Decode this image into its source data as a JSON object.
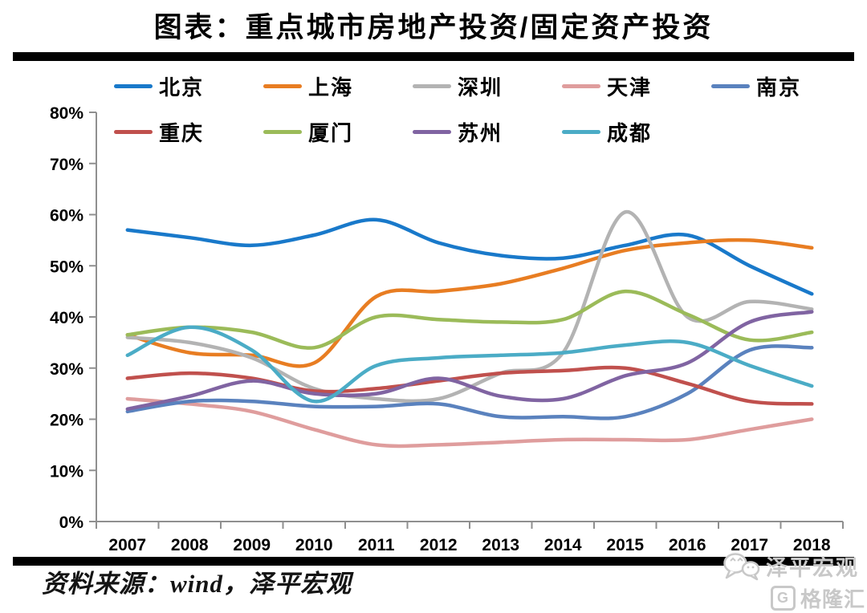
{
  "title": "图表：重点城市房地产投资/固定资产投资",
  "footer": {
    "source": "资料来源：wind，泽平宏观"
  },
  "watermark": {
    "wechat_account": "泽平宏观",
    "brand": "格隆汇",
    "brand_letter": "G"
  },
  "icons": {
    "watermark_icon": "wechat-bubbles-icon",
    "brand_icon": "gelonghui-g-icon"
  },
  "chart_data": {
    "type": "line",
    "title": "重点城市房地产投资/固定资产投资",
    "categories": [
      "2007",
      "2008",
      "2009",
      "2010",
      "2011",
      "2012",
      "2013",
      "2014",
      "2015",
      "2016",
      "2017",
      "2018"
    ],
    "xlabel": "",
    "ylabel": "",
    "unit": "percent",
    "ylim": [
      0,
      80
    ],
    "y_ticks": [
      "0%",
      "10%",
      "20%",
      "30%",
      "40%",
      "50%",
      "60%",
      "70%",
      "80%"
    ],
    "grid": false,
    "legend_position": "top",
    "axis_color": "#8f8f8f",
    "line_smoothing": true,
    "series": [
      {
        "key": "beijing",
        "name": "北京",
        "color": "#1979ca",
        "values": [
          57,
          55.5,
          54,
          56,
          59,
          54.5,
          52,
          51.5,
          54,
          56,
          50,
          44.5
        ]
      },
      {
        "key": "shanghai",
        "name": "上海",
        "color": "#e87d22",
        "values": [
          36.5,
          33,
          32.5,
          31,
          44,
          45,
          46.5,
          49.5,
          53,
          54.5,
          55,
          53.5
        ]
      },
      {
        "key": "shenzhen",
        "name": "深圳",
        "color": "#b3b3b3",
        "values": [
          36,
          35,
          32,
          26,
          24,
          24,
          29,
          33,
          60.5,
          40,
          43,
          41.5
        ]
      },
      {
        "key": "tianjin",
        "name": "天津",
        "color": "#df9d9d",
        "values": [
          24,
          23,
          21.5,
          18,
          15,
          15,
          15.5,
          16,
          16,
          16,
          18,
          20
        ]
      },
      {
        "key": "nanjing",
        "name": "南京",
        "color": "#5a82be",
        "values": [
          21.5,
          23.5,
          23.5,
          22.5,
          22.5,
          23,
          20.5,
          20.5,
          20.5,
          25,
          33.5,
          34
        ]
      },
      {
        "key": "chongqing",
        "name": "重庆",
        "color": "#c0504d",
        "values": [
          28,
          29,
          28,
          25.5,
          26,
          27.5,
          29,
          29.5,
          30,
          27,
          23.5,
          23
        ]
      },
      {
        "key": "xiamen",
        "name": "厦门",
        "color": "#9bbb59",
        "values": [
          36.5,
          38,
          37,
          34,
          40,
          39.5,
          39,
          39.5,
          45,
          40.5,
          35.5,
          37
        ]
      },
      {
        "key": "suzhou",
        "name": "苏州",
        "color": "#8064a2",
        "values": [
          22,
          24.5,
          27.5,
          25,
          25,
          28,
          24.5,
          24,
          28.5,
          31,
          39,
          41
        ]
      },
      {
        "key": "chengdu",
        "name": "成都",
        "color": "#4bacc6",
        "values": [
          32.5,
          38,
          33.5,
          23.5,
          30.5,
          32,
          32.5,
          33,
          34.5,
          35,
          30.5,
          26.5
        ]
      }
    ]
  }
}
